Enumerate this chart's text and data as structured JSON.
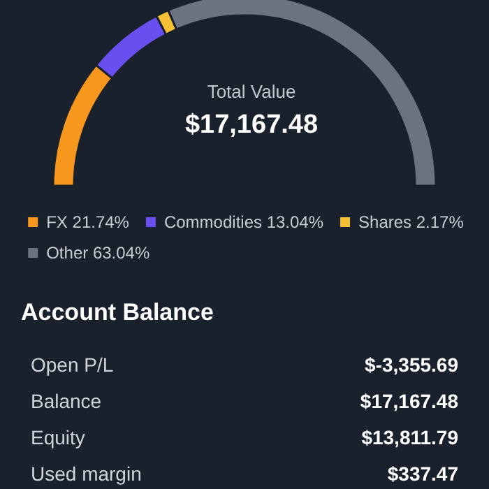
{
  "chart_data": [
    {
      "type": "donut",
      "title": "Total Value",
      "subtitle": "$17,167.48",
      "categories": [
        "FX",
        "Commodities",
        "Shares",
        "Other"
      ],
      "values": [
        21.74,
        13.04,
        2.17,
        63.04
      ],
      "value_labels": [
        "21.74%",
        "13.04%",
        "2.17%",
        "63.04%"
      ],
      "colors": [
        "#f7971e",
        "#6a4ff0",
        "#f6c034",
        "#6b7380"
      ],
      "legend": "bottom"
    },
    {
      "type": "other",
      "title": "Account Balance",
      "annotations": [
        "Open P/L",
        "$-3,355.69",
        "Balance",
        "$17,167.48",
        "Equity",
        "$13,811.79",
        "Used margin",
        "$337.47"
      ]
    }
  ]
}
